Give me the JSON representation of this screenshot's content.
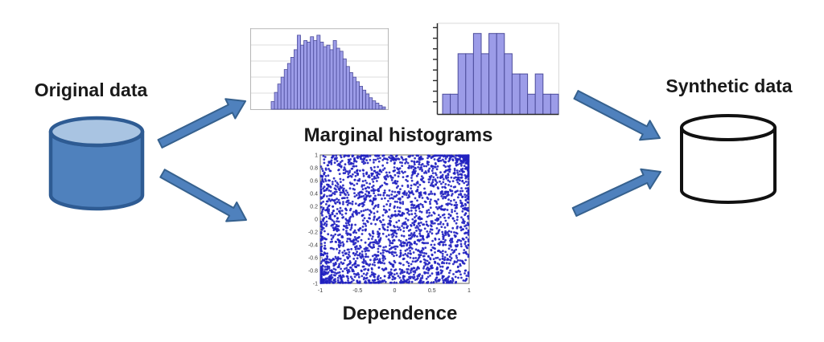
{
  "diagram": {
    "original_label": "Original data",
    "synthetic_label": "Synthetic data",
    "marginal_label": "Marginal histograms",
    "dependence_label": "Dependence",
    "flows": [
      {
        "from": "original-data",
        "to": "marginal-histograms"
      },
      {
        "from": "original-data",
        "to": "dependence"
      },
      {
        "from": "marginal-histograms",
        "to": "synthetic-data"
      },
      {
        "from": "dependence",
        "to": "synthetic-data"
      }
    ]
  },
  "colors": {
    "arrow_fill": "#4f81bd",
    "arrow_stroke": "#36618e",
    "cylinder_blue_fill": "#4f81bd",
    "cylinder_blue_top": "#a9c4e2",
    "cylinder_blue_stroke": "#2e5b93",
    "cylinder_white_fill": "#ffffff",
    "cylinder_white_stroke": "#111111",
    "hist_bar_fill": "#9c9ce8",
    "hist_bar_stroke": "#4c4c9b",
    "hist_grid": "#dcdcdc",
    "hist_frame": "#b6b6b6",
    "axis_dark": "#2a2a2a",
    "scatter_point": "#2121c0",
    "scatter_frame": "#666666",
    "tick_text": "#3a3a3a",
    "text": "#1a1a1a"
  },
  "chart_data": [
    {
      "id": "histogram-fine",
      "type": "bar",
      "title": "",
      "xlabel": "",
      "ylabel": "",
      "grid": true,
      "n_bars": 35,
      "values": [
        0.1,
        0.22,
        0.33,
        0.42,
        0.52,
        0.6,
        0.68,
        0.78,
        0.97,
        0.84,
        0.9,
        0.88,
        0.95,
        0.9,
        0.97,
        0.88,
        0.82,
        0.84,
        0.78,
        0.9,
        0.8,
        0.76,
        0.66,
        0.56,
        0.48,
        0.42,
        0.36,
        0.3,
        0.25,
        0.2,
        0.15,
        0.11,
        0.08,
        0.05,
        0.03
      ],
      "ylim": [
        0,
        1
      ],
      "note": "bell-shaped marginal histogram, relative heights, no tick labels"
    },
    {
      "id": "histogram-coarse",
      "type": "bar",
      "title": "",
      "xlabel": "",
      "ylabel": "",
      "grid": false,
      "n_bars": 15,
      "values": [
        1,
        1,
        3,
        3,
        4,
        3,
        4,
        4,
        3,
        2,
        2,
        1,
        2,
        1,
        1
      ],
      "ylim": [
        0,
        4.5
      ],
      "yticks_count": 8,
      "note": "coarse marginal histogram, left axis with unlabeled ticks"
    },
    {
      "id": "dependence-scatter",
      "type": "scatter",
      "title": "",
      "xlabel": "",
      "ylabel": "",
      "xlim": [
        -1,
        1
      ],
      "ylim": [
        -1,
        1
      ],
      "xtick_labels": [
        "-1",
        "-0.5",
        "0",
        "0.5",
        "1"
      ],
      "xticks": [
        -1,
        -0.5,
        0,
        0.5,
        1
      ],
      "ytick_labels": [
        "1",
        "0.8",
        "0.6",
        "0.4",
        "0.2",
        "0",
        "-0.2",
        "-0.4",
        "-0.6",
        "-0.8",
        "-1"
      ],
      "yticks": [
        1,
        0.8,
        0.6,
        0.4,
        0.2,
        0,
        -0.2,
        -0.4,
        -0.6,
        -0.8,
        -1
      ],
      "n_points": 2600,
      "seed": 42,
      "pattern": "uniform cloud over the square with very dense clusters in the lower-left and upper-right corners (positive tail dependence)"
    }
  ]
}
